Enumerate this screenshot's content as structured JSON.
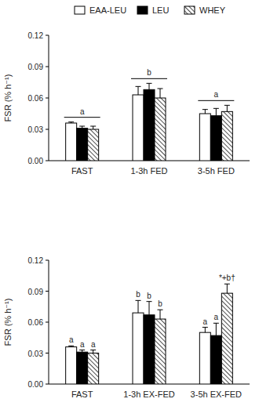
{
  "chart_data": [
    {
      "type": "bar",
      "legend": "top",
      "y_label": "FSR (% h⁻¹)",
      "categories": [
        "FAST",
        "1-3h FED",
        "3-5h FED"
      ],
      "series": [
        {
          "name": "EAA-LEU",
          "color": "#ffffff",
          "values": [
            0.036,
            0.063,
            0.045
          ],
          "errors": [
            0.001,
            0.008,
            0.004
          ]
        },
        {
          "name": "LEU",
          "color": "#000000",
          "values": [
            0.031,
            0.068,
            0.043
          ],
          "errors": [
            0.002,
            0.006,
            0.007
          ]
        },
        {
          "name": "WHEY",
          "color": "#ffffff",
          "values": [
            0.03,
            0.06,
            0.047
          ],
          "errors": [
            0.003,
            0.009,
            0.006
          ]
        }
      ],
      "ylim": [
        0,
        0.12
      ],
      "yticks": [
        {
          "value": 0,
          "label": "0.00"
        },
        {
          "value": 0.03,
          "label": "0.03"
        },
        {
          "value": 0.06,
          "label": "0.06"
        },
        {
          "value": 0.09,
          "label": "0.09"
        },
        {
          "value": 0.12,
          "label": "0.12"
        }
      ],
      "annotations": [
        {
          "text": "a",
          "category": 0
        },
        {
          "text": "b",
          "category": 1
        },
        {
          "text": "a",
          "category": 2
        }
      ]
    },
    {
      "type": "bar",
      "y_label": "FSR (% h⁻¹)",
      "categories": [
        "FAST",
        "1-3h EX-FED",
        "3-5h EX-FED"
      ],
      "series": [
        {
          "color": "#ffffff",
          "values": [
            0.036,
            0.069,
            0.05
          ],
          "errors": [
            0.001,
            0.012,
            0.005
          ]
        },
        {
          "color": "#000000",
          "values": [
            0.031,
            0.067,
            0.047
          ],
          "errors": [
            0.002,
            0.013,
            0.012
          ]
        },
        {
          "color": "#ffffff",
          "values": [
            0.03,
            0.063,
            0.088
          ],
          "errors": [
            0.003,
            0.009,
            0.009
          ]
        }
      ],
      "ylim": [
        0,
        0.12
      ],
      "yticks": [
        {
          "value": 0,
          "label": "0.00"
        },
        {
          "value": 0.03,
          "label": "0.03"
        },
        {
          "value": 0.06,
          "label": "0.06"
        },
        {
          "value": 0.09,
          "label": "0.09"
        },
        {
          "value": 0.12,
          "label": "0.12"
        }
      ],
      "annotations": [
        {
          "text": "a",
          "category": 0,
          "series": 0
        },
        {
          "text": "a",
          "category": 0,
          "series": 1
        },
        {
          "text": "a",
          "category": 0,
          "series": 2
        },
        {
          "text": "b",
          "category": 1,
          "series": 0
        },
        {
          "text": "b",
          "category": 1,
          "series": 1
        },
        {
          "text": "b",
          "category": 1,
          "series": 2
        },
        {
          "text": "a",
          "category": 2,
          "series": 0
        },
        {
          "text": "a",
          "category": 2,
          "series": 1
        },
        {
          "text": "*+b†",
          "category": 2,
          "series": 2
        }
      ]
    }
  ]
}
